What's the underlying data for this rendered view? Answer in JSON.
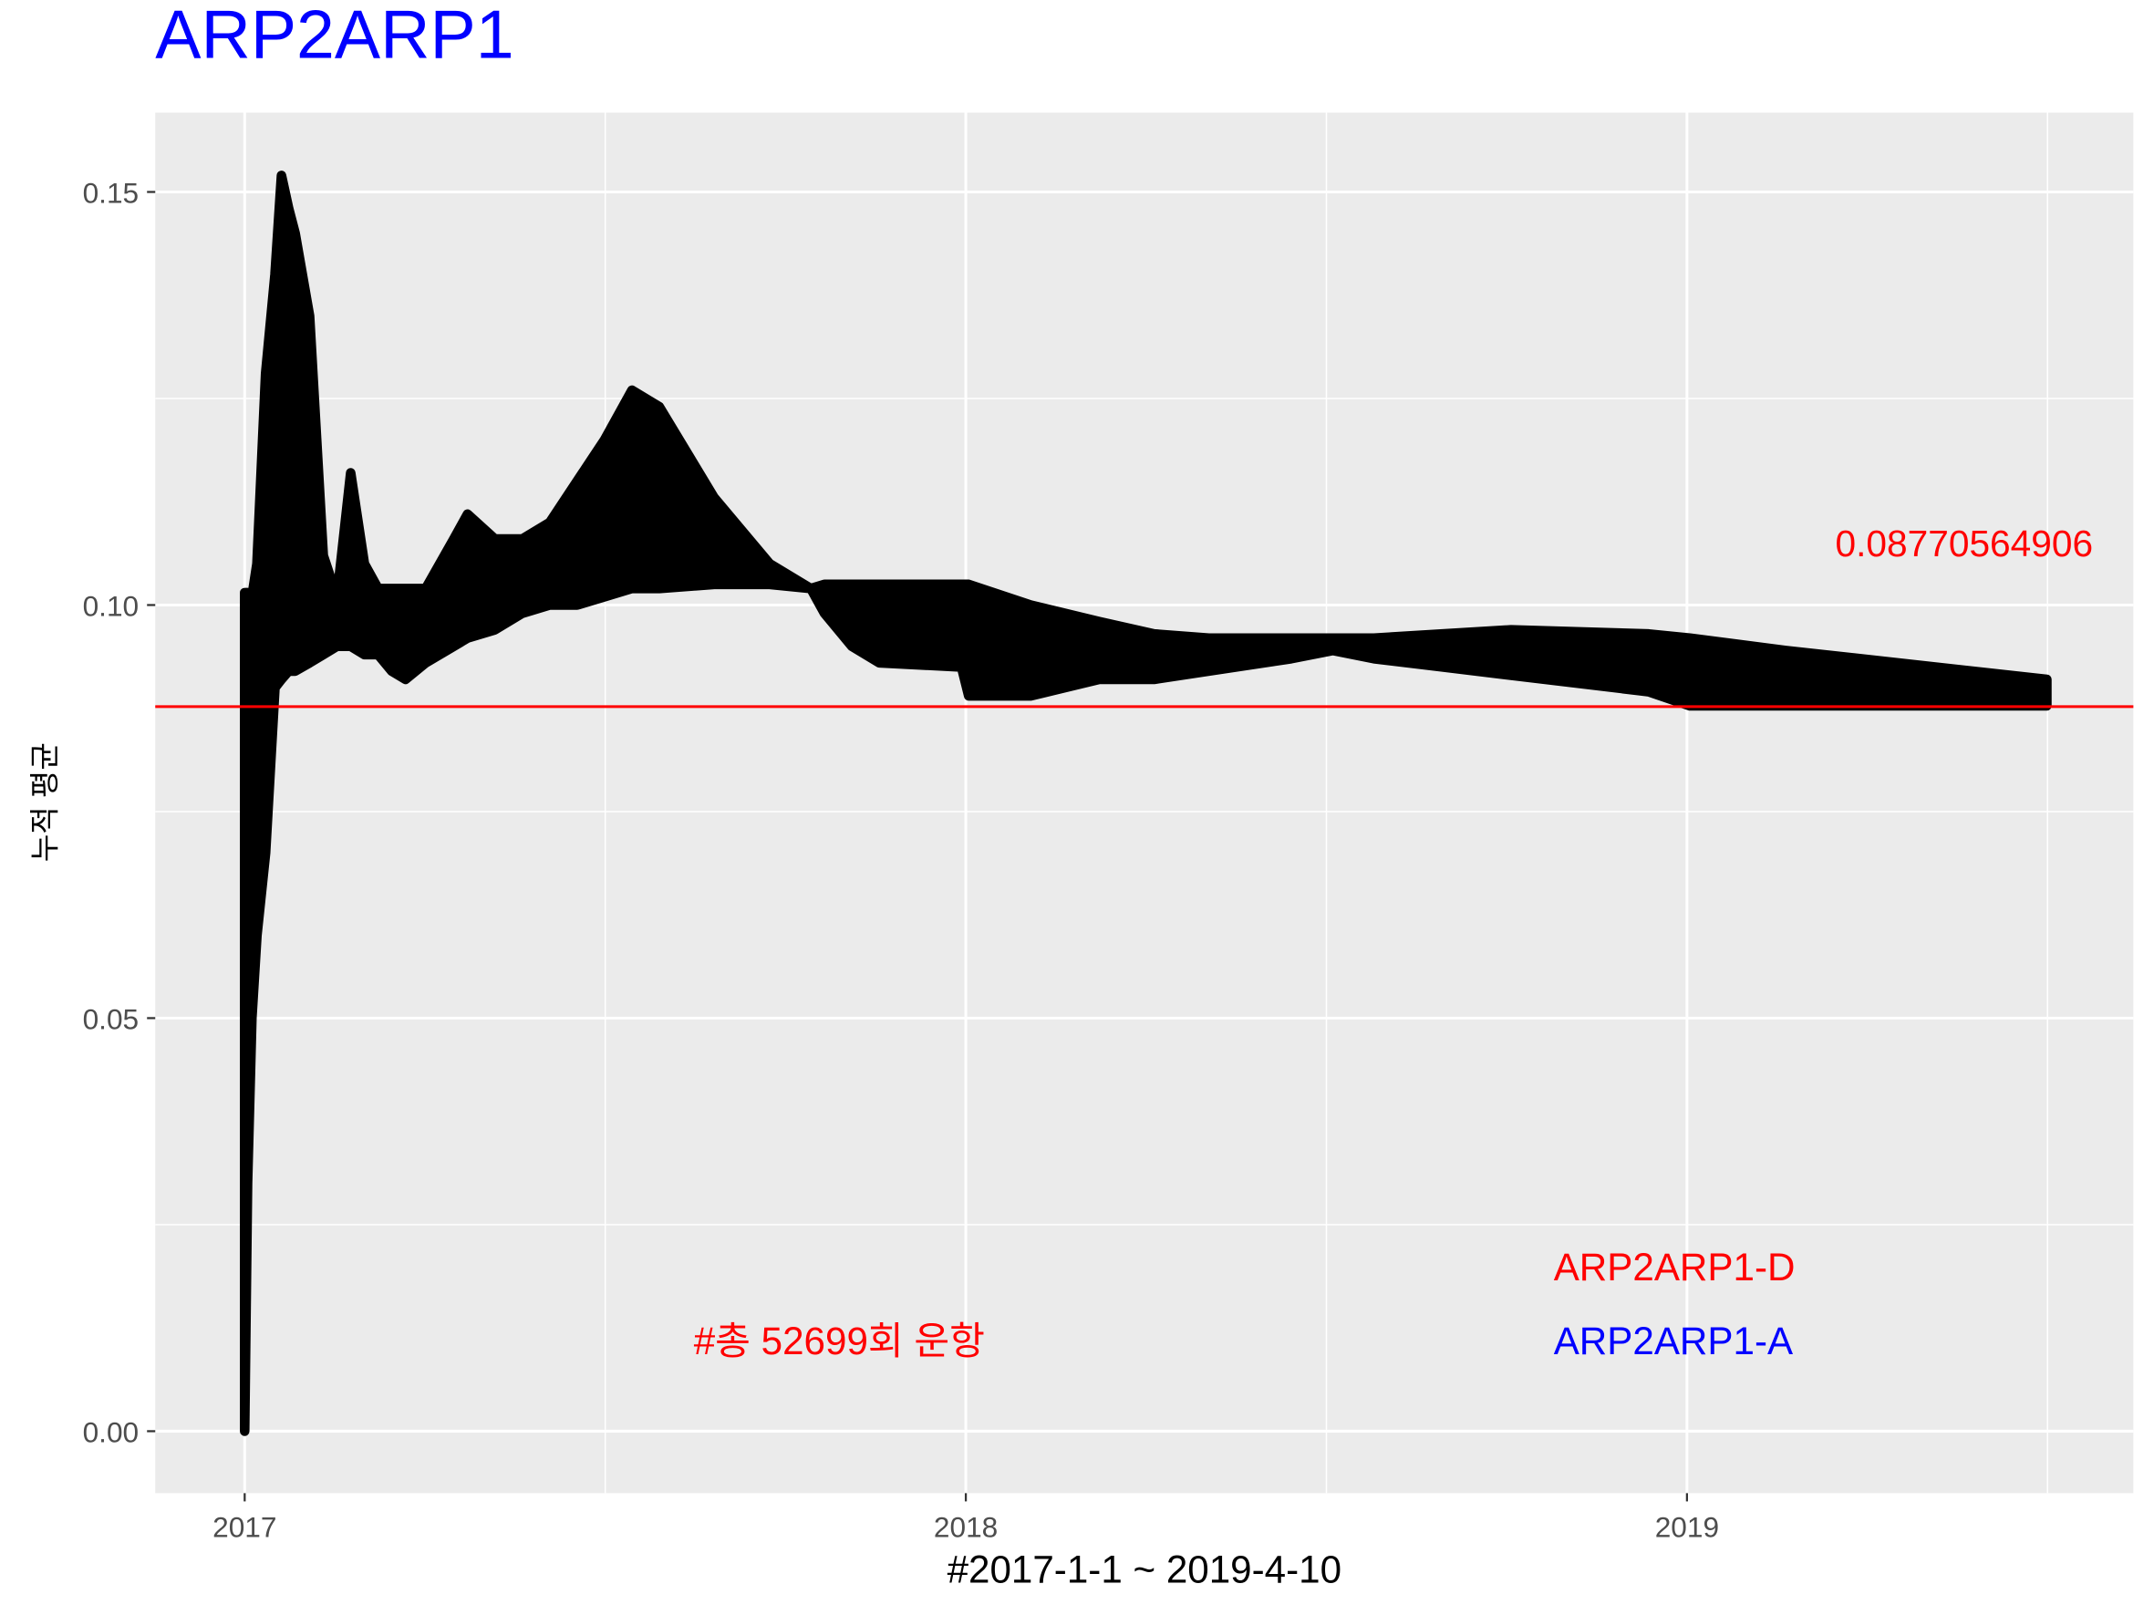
{
  "chart_data": {
    "type": "band",
    "title": "ARP2ARP1",
    "x_label": "#2017-1-1 ~ 2019-4-10",
    "y_label": "누적 평균",
    "x": [
      2017.0,
      2017.004,
      2017.01,
      2017.017,
      2017.029,
      2017.042,
      2017.051,
      2017.061,
      2017.07,
      2017.09,
      2017.109,
      2017.128,
      2017.147,
      2017.166,
      2017.185,
      2017.204,
      2017.223,
      2017.251,
      2017.29,
      2017.309,
      2017.347,
      2017.385,
      2017.423,
      2017.461,
      2017.499,
      2017.537,
      2017.575,
      2017.651,
      2017.728,
      2017.785,
      2017.804,
      2017.842,
      2017.88,
      2017.994,
      2018.004,
      2018.09,
      2018.185,
      2018.261,
      2018.337,
      2018.451,
      2018.509,
      2018.566,
      2018.661,
      2018.756,
      2018.947,
      2019.004,
      2019.137,
      2019.499
    ],
    "high": [
      0.1015,
      0.1015,
      0.101,
      0.105,
      0.128,
      0.14,
      0.152,
      0.148,
      0.145,
      0.135,
      0.106,
      0.101,
      0.116,
      0.105,
      0.102,
      0.102,
      0.102,
      0.102,
      0.108,
      0.111,
      0.108,
      0.108,
      0.11,
      0.115,
      0.12,
      0.126,
      0.124,
      0.113,
      0.105,
      0.102,
      0.1025,
      0.1025,
      0.1025,
      0.1025,
      0.1025,
      0.1,
      0.098,
      0.0965,
      0.096,
      0.096,
      0.096,
      0.096,
      0.0965,
      0.097,
      0.0965,
      0.096,
      0.0945,
      0.091
    ],
    "low": [
      0,
      0.03,
      0.05,
      0.06,
      0.07,
      0.09,
      0.091,
      0.092,
      0.092,
      0.093,
      0.094,
      0.095,
      0.095,
      0.094,
      0.094,
      0.092,
      0.091,
      0.093,
      0.095,
      0.096,
      0.097,
      0.099,
      0.1,
      0.1,
      0.101,
      0.102,
      0.102,
      0.1025,
      0.1025,
      0.102,
      0.099,
      0.095,
      0.093,
      0.0925,
      0.089,
      0.089,
      0.091,
      0.091,
      0.092,
      0.0935,
      0.0945,
      0.0935,
      0.0925,
      0.0915,
      0.0895,
      0.0878,
      0.0878,
      0.0878
    ],
    "color": "#000000",
    "hline": {
      "value": 0.08770564906,
      "label": "0.08770564906",
      "color": "#ff0000"
    },
    "annotations": [
      {
        "text": "#총 52699회 운항",
        "color": "#ff0000"
      },
      {
        "text": "ARP2ARP1-D",
        "color": "#ff0000"
      },
      {
        "text": "ARP2ARP1-A",
        "color": "#0000ff"
      }
    ],
    "xlim": [
      2016.876,
      2019.619
    ],
    "xticks": [
      2017,
      2018,
      2019
    ],
    "xminor": [
      2017.5,
      2018.5,
      2019.5
    ],
    "ylim": [
      -0.0075,
      0.1596
    ],
    "yticks": [
      {
        "value": 0,
        "label": "0.00"
      },
      {
        "value": 0.05,
        "label": "0.05"
      },
      {
        "value": 0.1,
        "label": "0.10"
      },
      {
        "value": 0.15,
        "label": "0.15"
      }
    ],
    "yminor": [
      0.025,
      0.075,
      0.125
    ],
    "grid": true
  }
}
